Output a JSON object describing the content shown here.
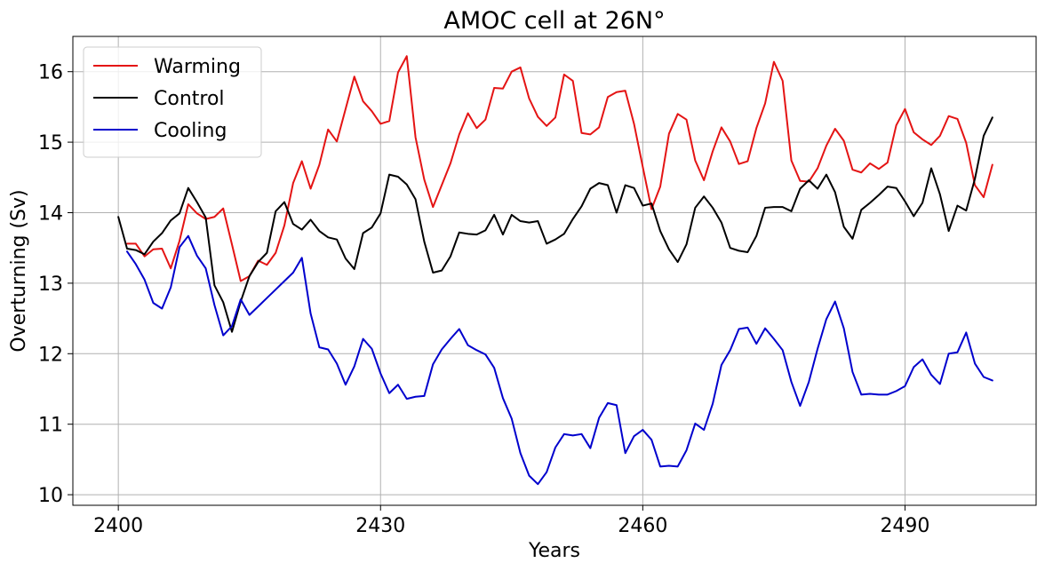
{
  "chart_data": {
    "type": "line",
    "title": "AMOC cell at 26N°",
    "xlabel": "Years",
    "ylabel": "Overturning (Sv)",
    "xlim": [
      2394.8,
      2505
    ],
    "ylim": [
      9.85,
      16.5
    ],
    "xticks": [
      2400,
      2430,
      2460,
      2490
    ],
    "yticks": [
      10,
      11,
      12,
      13,
      14,
      15,
      16
    ],
    "grid": true,
    "legend_position": "top-left",
    "x": [
      2400,
      2401,
      2402,
      2403,
      2404,
      2405,
      2406,
      2407,
      2408,
      2409,
      2410,
      2411,
      2412,
      2413,
      2414,
      2415,
      2416,
      2417,
      2418,
      2419,
      2420,
      2421,
      2422,
      2423,
      2424,
      2425,
      2426,
      2427,
      2428,
      2429,
      2430,
      2431,
      2432,
      2433,
      2434,
      2435,
      2436,
      2437,
      2438,
      2439,
      2440,
      2441,
      2442,
      2443,
      2444,
      2445,
      2446,
      2447,
      2448,
      2449,
      2450,
      2451,
      2452,
      2453,
      2454,
      2455,
      2456,
      2457,
      2458,
      2459,
      2460,
      2461,
      2462,
      2463,
      2464,
      2465,
      2466,
      2467,
      2468,
      2469,
      2470,
      2471,
      2472,
      2473,
      2474,
      2475,
      2476,
      2477,
      2478,
      2479,
      2480,
      2481,
      2482,
      2483,
      2484,
      2485,
      2486,
      2487,
      2488,
      2489,
      2490,
      2491,
      2492,
      2493,
      2494,
      2495,
      2496,
      2497,
      2498,
      2499,
      2500
    ],
    "series": [
      {
        "name": "Warming",
        "color": "#e41414",
        "values": [
          null,
          13.56,
          13.56,
          13.38,
          13.48,
          13.49,
          13.21,
          13.6,
          14.12,
          13.99,
          13.91,
          13.94,
          14.06,
          13.55,
          13.03,
          13.1,
          13.32,
          13.26,
          13.43,
          13.82,
          14.42,
          14.73,
          14.34,
          14.68,
          15.18,
          15.01,
          15.47,
          15.93,
          15.58,
          15.44,
          15.26,
          15.3,
          15.99,
          16.22,
          15.07,
          14.47,
          14.08,
          14.39,
          14.7,
          15.11,
          15.41,
          15.2,
          15.32,
          15.77,
          15.76,
          16.0,
          16.06,
          15.62,
          15.36,
          15.23,
          15.35,
          15.96,
          15.87,
          15.13,
          15.11,
          15.21,
          15.64,
          15.71,
          15.73,
          15.26,
          14.65,
          14.05,
          14.37,
          15.12,
          15.4,
          15.32,
          14.74,
          14.46,
          14.87,
          15.21,
          15.01,
          14.69,
          14.73,
          15.2,
          15.55,
          16.14,
          15.87,
          14.74,
          14.45,
          14.44,
          14.63,
          14.95,
          15.19,
          15.02,
          14.61,
          14.57,
          14.7,
          14.62,
          14.71,
          15.24,
          15.47,
          15.14,
          15.04,
          14.96,
          15.09,
          15.37,
          15.33,
          14.99,
          14.39,
          14.22,
          14.68
        ]
      },
      {
        "name": "Control",
        "color": "#000000",
        "values": [
          13.94,
          13.49,
          13.47,
          13.41,
          13.59,
          13.71,
          13.89,
          13.99,
          14.35,
          14.15,
          13.93,
          12.97,
          12.73,
          12.31,
          12.74,
          13.1,
          13.3,
          13.43,
          14.02,
          14.15,
          13.84,
          13.76,
          13.9,
          13.74,
          13.65,
          13.62,
          13.35,
          13.2,
          13.71,
          13.79,
          13.99,
          14.54,
          14.51,
          14.4,
          14.19,
          13.59,
          13.15,
          13.18,
          13.38,
          13.72,
          13.7,
          13.69,
          13.75,
          13.97,
          13.69,
          13.97,
          13.88,
          13.86,
          13.88,
          13.56,
          13.62,
          13.7,
          13.91,
          14.09,
          14.34,
          14.42,
          14.39,
          14.0,
          14.39,
          14.35,
          14.1,
          14.13,
          13.74,
          13.48,
          13.3,
          13.55,
          14.07,
          14.23,
          14.07,
          13.86,
          13.5,
          13.46,
          13.44,
          13.67,
          14.07,
          14.08,
          14.08,
          14.02,
          14.34,
          14.46,
          14.34,
          14.54,
          14.29,
          13.8,
          13.63,
          14.04,
          14.14,
          14.25,
          14.37,
          14.35,
          14.16,
          13.95,
          14.14,
          14.63,
          14.26,
          13.74,
          14.1,
          14.03,
          14.48,
          15.09,
          15.35
        ]
      },
      {
        "name": "Cooling",
        "color": "#0000cd",
        "values": [
          null,
          13.45,
          13.27,
          13.05,
          12.72,
          12.64,
          12.94,
          13.51,
          13.67,
          13.39,
          13.21,
          12.69,
          12.26,
          12.39,
          12.77,
          12.55,
          12.67,
          12.79,
          12.91,
          13.03,
          13.15,
          13.36,
          12.57,
          12.09,
          12.06,
          11.86,
          11.56,
          11.82,
          12.21,
          12.07,
          11.72,
          11.44,
          11.56,
          11.36,
          11.39,
          11.4,
          11.85,
          12.06,
          12.21,
          12.35,
          12.12,
          12.05,
          11.99,
          11.8,
          11.37,
          11.08,
          10.59,
          10.27,
          10.15,
          10.32,
          10.67,
          10.86,
          10.84,
          10.86,
          10.66,
          11.09,
          11.3,
          11.27,
          10.59,
          10.83,
          10.92,
          10.78,
          10.4,
          10.41,
          10.4,
          10.63,
          11.01,
          10.92,
          11.29,
          11.84,
          12.05,
          12.35,
          12.37,
          12.14,
          12.36,
          12.21,
          12.05,
          11.6,
          11.26,
          11.6,
          12.07,
          12.49,
          12.74,
          12.36,
          11.74,
          11.42,
          11.43,
          11.42,
          11.42,
          11.47,
          11.54,
          11.81,
          11.92,
          11.7,
          11.57,
          12.0,
          12.02,
          12.3,
          11.86,
          11.67,
          11.62
        ]
      }
    ]
  }
}
